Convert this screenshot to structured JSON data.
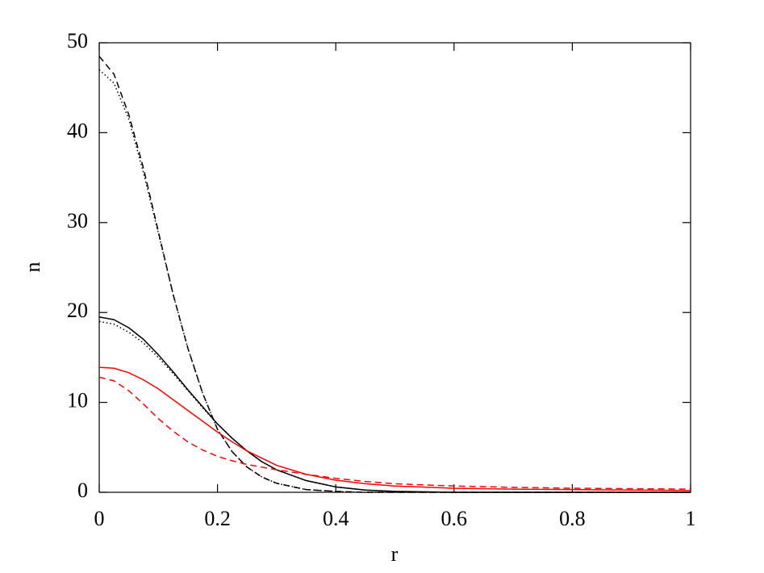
{
  "chart_data": {
    "type": "line",
    "x_label": "r",
    "y_label": "n",
    "x": [
      0,
      0.025,
      0.05,
      0.075,
      0.1,
      0.125,
      0.15,
      0.175,
      0.2,
      0.225,
      0.25,
      0.275,
      0.3,
      0.35,
      0.4,
      0.45,
      0.5,
      0.6,
      0.7,
      0.8,
      0.9,
      1
    ],
    "series": [
      {
        "color": "#000000",
        "dash": "dashed",
        "values": [
          48.5,
          46.5,
          42,
          36,
          29,
          22,
          16,
          11,
          7,
          4.5,
          2.8,
          1.7,
          1.0,
          0.3,
          0.1,
          0,
          0,
          0,
          0,
          0,
          0,
          0
        ]
      },
      {
        "color": "#000000",
        "dash": "dotted",
        "values": [
          47,
          45.5,
          41.5,
          35.5,
          28.8,
          22,
          16,
          11,
          7,
          4.5,
          2.8,
          1.7,
          1.0,
          0.3,
          0.1,
          0,
          0,
          0,
          0,
          0,
          0,
          0
        ]
      },
      {
        "color": "#000000",
        "dash": "solid",
        "values": [
          19.5,
          19.2,
          18.3,
          17,
          15.3,
          13.4,
          11.4,
          9.5,
          7.6,
          6,
          4.6,
          3.4,
          2.5,
          1.3,
          0.6,
          0.25,
          0.1,
          0,
          0,
          0,
          0,
          0
        ]
      },
      {
        "color": "#000000",
        "dash": "dotted",
        "values": [
          19,
          18.7,
          17.8,
          16.6,
          15,
          13.2,
          11.3,
          9.4,
          7.6,
          6,
          4.6,
          3.4,
          2.5,
          1.3,
          0.6,
          0.25,
          0.1,
          0,
          0,
          0,
          0,
          0
        ]
      },
      {
        "color": "#ff0000",
        "dash": "solid",
        "values": [
          13.9,
          13.8,
          13.3,
          12.5,
          11.5,
          10.3,
          9.1,
          7.9,
          6.7,
          5.6,
          4.6,
          3.8,
          3.0,
          2.0,
          1.35,
          0.95,
          0.7,
          0.45,
          0.35,
          0.3,
          0.25,
          0.2
        ]
      },
      {
        "color": "#ff0000",
        "dash": "dashed",
        "values": [
          12.8,
          12.4,
          11.3,
          9.8,
          8.2,
          6.8,
          5.6,
          4.7,
          4.0,
          3.5,
          3.1,
          2.8,
          2.5,
          2.0,
          1.55,
          1.2,
          0.95,
          0.7,
          0.55,
          0.45,
          0.4,
          0.35
        ]
      }
    ],
    "xlim": [
      0,
      1
    ],
    "ylim": [
      0,
      50
    ],
    "xticks": [
      0,
      0.2,
      0.4,
      0.6,
      0.8,
      1
    ],
    "yticks": [
      0,
      10,
      20,
      30,
      40,
      50
    ],
    "mirror_ticks": true
  }
}
